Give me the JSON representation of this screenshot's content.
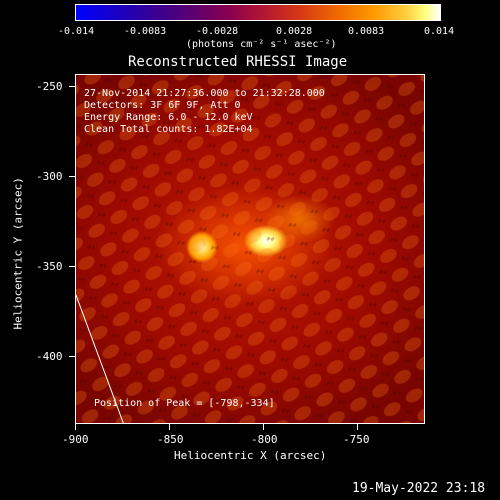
{
  "colorbar": {
    "ticks": [
      "-0.014",
      "-0.0083",
      "-0.0028",
      "0.0028",
      "0.0083",
      "0.014"
    ],
    "unit_label": "(photons cm⁻² s⁻¹ asec⁻²)"
  },
  "title": "Reconstructed RHESSI Image",
  "info": {
    "line1": "27-Nov-2014 21:27:36.000 to 21:32:28.000",
    "line2": "Detectors: 3F 6F 9F, Att 0",
    "line3": "Energy Range: 6.0 - 12.0 keV",
    "line4": "Clean     Total counts: 1.82E+04"
  },
  "peak_label": "Position of Peak = [-798,-334]",
  "axes": {
    "xlabel": "Heliocentric X (arcsec)",
    "ylabel": "Heliocentric Y (arcsec)",
    "xticks": [
      "-900",
      "-850",
      "-800",
      "-750"
    ],
    "yticks": [
      "-250",
      "-300",
      "-350",
      "-400"
    ]
  },
  "timestamp": "19-May-2022 23:18",
  "colors": {
    "background": "#000000",
    "foreground": "#ffffff"
  }
}
